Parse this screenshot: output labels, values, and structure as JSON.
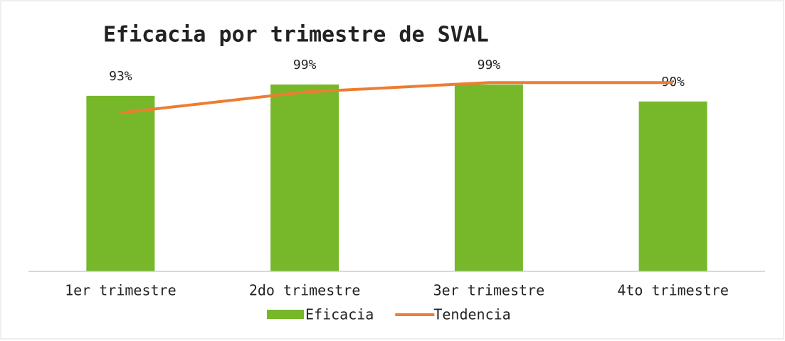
{
  "chart_data": {
    "type": "bar",
    "title": "Eficacia por trimestre de SVAL",
    "categories": [
      "1er trimestre",
      "2do trimestre",
      "3er trimestre",
      "4to trimestre"
    ],
    "series": [
      {
        "name": "Eficacia",
        "type": "bar",
        "color": "#76b82a",
        "values": [
          93,
          99,
          99,
          90
        ],
        "value_labels": [
          "93%",
          "99%",
          "99%",
          "90%"
        ]
      },
      {
        "name": "Tendencia",
        "type": "line",
        "color": "#ed7d31",
        "values": [
          84,
          95,
          100,
          100
        ]
      }
    ],
    "ylim": [
      0,
      108
    ],
    "legend": "bottom"
  }
}
